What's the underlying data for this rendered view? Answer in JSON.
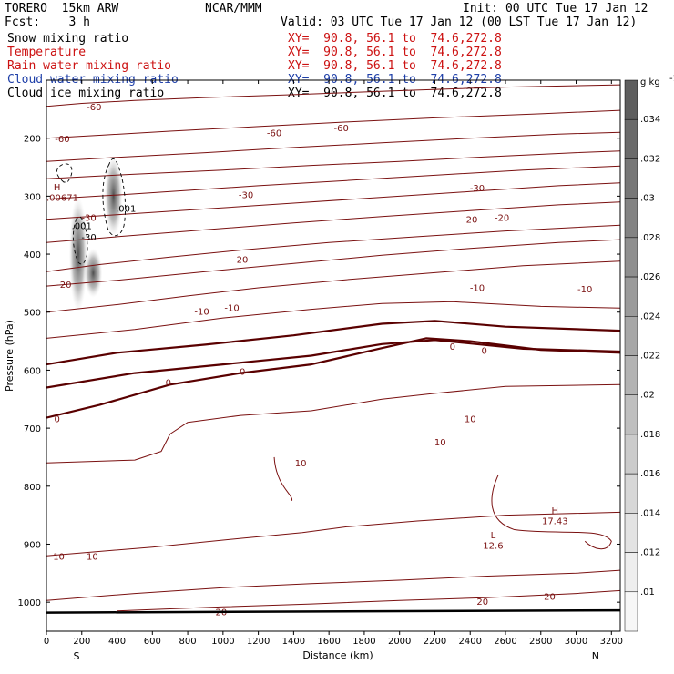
{
  "header": {
    "model": "TORERO  15km ARW",
    "center": "NCAR/MMM",
    "init": "Init: 00 UTC Tue 17 Jan 12",
    "fcst": "Fcst:    3 h",
    "valid": "Valid: 03 UTC Tue 17 Jan 12 (00 LST Tue 17 Jan 12)"
  },
  "fields": [
    {
      "label": "Snow mixing ratio",
      "xy": "XY=  90.8, 56.1 to  74.6,272.8",
      "color": "#000000"
    },
    {
      "label": "Temperature",
      "xy": "XY=  90.8, 56.1 to  74.6,272.8",
      "color": "#cc1111"
    },
    {
      "label": "Rain water mixing ratio",
      "xy": "XY=  90.8, 56.1 to  74.6,272.8",
      "color": "#cc1111"
    },
    {
      "label": "Cloud water mixing ratio",
      "xy": "XY=  90.8, 56.1 to  74.6,272.8",
      "color": "#1e3fa8"
    },
    {
      "label": "Cloud ice mixing ratio",
      "xy": "XY=  90.8, 56.1 to  74.6,272.8",
      "color": "#000000"
    }
  ],
  "chart_data": {
    "type": "contour",
    "xlabel": "Distance (km)",
    "ylabel": "Pressure (hPa)",
    "xlim": [
      0,
      3250
    ],
    "ylim": [
      1050,
      100
    ],
    "xticks": [
      0,
      200,
      400,
      600,
      800,
      1000,
      1200,
      1400,
      1600,
      1800,
      2000,
      2200,
      2400,
      2600,
      2800,
      3000,
      3200
    ],
    "yticks": [
      200,
      300,
      400,
      500,
      600,
      700,
      800,
      900,
      1000
    ],
    "end_labels": {
      "left": "S",
      "right": "N"
    },
    "colorbar": {
      "unit": "g kg",
      "unit_exp": "-1",
      "ticks": [
        ".034",
        ".032",
        ".03",
        ".028",
        ".026",
        ".024",
        ".022",
        ".02",
        ".018",
        ".016",
        ".014",
        ".012",
        ".01"
      ],
      "colors": [
        "#5e5e5e",
        "#6a6a6a",
        "#777777",
        "#838383",
        "#8f8f8f",
        "#9b9b9b",
        "#a7a7a7",
        "#b3b3b3",
        "#bfbfbf",
        "#cbcbcb",
        "#d7d7d7",
        "#e3e3e3",
        "#eeeeee",
        "#f7f7f7"
      ]
    },
    "isotherms": [
      {
        "value": -60,
        "points": [
          [
            0,
            145
          ],
          [
            200,
            140
          ],
          [
            500,
            135
          ],
          [
            900,
            130
          ],
          [
            1400,
            125
          ],
          [
            2000,
            118
          ],
          [
            2600,
            112
          ],
          [
            3250,
            108
          ]
        ]
      },
      {
        "value": -60,
        "points": [
          [
            0,
            200
          ],
          [
            300,
            195
          ],
          [
            700,
            188
          ],
          [
            1200,
            180
          ],
          [
            1700,
            172
          ],
          [
            2200,
            165
          ],
          [
            2800,
            158
          ],
          [
            3250,
            152
          ]
        ]
      },
      {
        "value": -50,
        "points": [
          [
            0,
            240
          ],
          [
            400,
            233
          ],
          [
            900,
            225
          ],
          [
            1400,
            216
          ],
          [
            1900,
            208
          ],
          [
            2400,
            200
          ],
          [
            2900,
            193
          ],
          [
            3250,
            190
          ]
        ]
      },
      {
        "value": -40,
        "points": [
          [
            0,
            270
          ],
          [
            500,
            262
          ],
          [
            1000,
            255
          ],
          [
            1500,
            247
          ],
          [
            2000,
            240
          ],
          [
            2500,
            232
          ],
          [
            3000,
            225
          ],
          [
            3250,
            222
          ]
        ]
      },
      {
        "value": -30,
        "points": [
          [
            0,
            305
          ],
          [
            400,
            298
          ],
          [
            800,
            290
          ],
          [
            1200,
            282
          ],
          [
            1700,
            273
          ],
          [
            2200,
            264
          ],
          [
            2700,
            255
          ],
          [
            3250,
            248
          ]
        ]
      },
      {
        "value": -30,
        "points": [
          [
            0,
            340
          ],
          [
            400,
            332
          ],
          [
            900,
            322
          ],
          [
            1400,
            312
          ],
          [
            1900,
            302
          ],
          [
            2400,
            292
          ],
          [
            2900,
            282
          ],
          [
            3250,
            277
          ]
        ]
      },
      {
        "value": -20,
        "points": [
          [
            0,
            380
          ],
          [
            400,
            370
          ],
          [
            900,
            358
          ],
          [
            1400,
            346
          ],
          [
            1900,
            335
          ],
          [
            2400,
            325
          ],
          [
            2900,
            315
          ],
          [
            3250,
            310
          ]
        ]
      },
      {
        "value": -20,
        "points": [
          [
            0,
            430
          ],
          [
            300,
            418
          ],
          [
            700,
            405
          ],
          [
            1100,
            393
          ],
          [
            1600,
            380
          ],
          [
            2100,
            370
          ],
          [
            2600,
            360
          ],
          [
            3250,
            350
          ]
        ]
      },
      {
        "value": -10,
        "points": [
          [
            0,
            455
          ],
          [
            400,
            445
          ],
          [
            900,
            430
          ],
          [
            1400,
            416
          ],
          [
            1900,
            402
          ],
          [
            2400,
            390
          ],
          [
            2900,
            380
          ],
          [
            3250,
            375
          ]
        ]
      },
      {
        "value": -10,
        "points": [
          [
            0,
            500
          ],
          [
            400,
            487
          ],
          [
            800,
            472
          ],
          [
            1200,
            458
          ],
          [
            1700,
            444
          ],
          [
            2200,
            432
          ],
          [
            2700,
            420
          ],
          [
            3250,
            412
          ]
        ]
      },
      {
        "value": -10,
        "points": [
          [
            0,
            545
          ],
          [
            500,
            530
          ],
          [
            1000,
            510
          ],
          [
            1500,
            495
          ],
          [
            1900,
            485
          ],
          [
            2300,
            482
          ],
          [
            2800,
            490
          ],
          [
            3250,
            493
          ]
        ]
      },
      {
        "value": 0,
        "points": [
          [
            0,
            590
          ],
          [
            400,
            570
          ],
          [
            900,
            556
          ],
          [
            1400,
            540
          ],
          [
            1900,
            520
          ],
          [
            2200,
            515
          ],
          [
            2600,
            525
          ],
          [
            3250,
            532
          ]
        ]
      },
      {
        "value": 0,
        "points": [
          [
            0,
            630
          ],
          [
            500,
            605
          ],
          [
            1000,
            590
          ],
          [
            1500,
            575
          ],
          [
            1900,
            555
          ],
          [
            2200,
            548
          ],
          [
            2700,
            563
          ],
          [
            3250,
            568
          ]
        ]
      },
      {
        "value": 0,
        "points": [
          [
            0,
            682
          ],
          [
            300,
            660
          ],
          [
            700,
            625
          ],
          [
            1100,
            605
          ],
          [
            1500,
            590
          ],
          [
            1900,
            562
          ],
          [
            2150,
            545
          ],
          [
            2400,
            550
          ],
          [
            2800,
            565
          ],
          [
            3250,
            570
          ]
        ]
      },
      {
        "value": 10,
        "points": [
          [
            0,
            760
          ],
          [
            500,
            755
          ],
          [
            650,
            740
          ],
          [
            700,
            710
          ],
          [
            800,
            690
          ],
          [
            1100,
            678
          ],
          [
            1500,
            670
          ],
          [
            1900,
            650
          ],
          [
            2200,
            640
          ],
          [
            2600,
            628
          ],
          [
            3250,
            625
          ]
        ]
      },
      {
        "value": 10,
        "points": [
          [
            0,
            920
          ],
          [
            600,
            905
          ],
          [
            1100,
            890
          ],
          [
            1450,
            880
          ],
          [
            1700,
            870
          ],
          [
            2100,
            860
          ],
          [
            2600,
            850
          ],
          [
            3250,
            845
          ]
        ]
      },
      {
        "value": 20,
        "points": [
          [
            0,
            997
          ],
          [
            500,
            985
          ],
          [
            1000,
            975
          ],
          [
            1500,
            968
          ],
          [
            2000,
            962
          ],
          [
            2500,
            955
          ],
          [
            3000,
            950
          ],
          [
            3250,
            945
          ]
        ]
      },
      {
        "value": 20,
        "points": [
          [
            400,
            1015
          ],
          [
            1000,
            1008
          ],
          [
            1500,
            1003
          ],
          [
            2000,
            997
          ],
          [
            2500,
            992
          ],
          [
            3000,
            985
          ],
          [
            3250,
            980
          ]
        ]
      }
    ],
    "isotherm_labels": [
      {
        "text": "-60",
        "x": 270,
        "y": 147
      },
      {
        "text": "-60",
        "x": 90,
        "y": 202
      },
      {
        "text": "-60",
        "x": 1290,
        "y": 192
      },
      {
        "text": "-60",
        "x": 1670,
        "y": 183
      },
      {
        "text": "-30",
        "x": 1130,
        "y": 299
      },
      {
        "text": "-30",
        "x": 2440,
        "y": 287
      },
      {
        "text": "-30",
        "x": 240,
        "y": 338
      },
      {
        "text": "-20",
        "x": 1100,
        "y": 410
      },
      {
        "text": "-20",
        "x": 2580,
        "y": 338
      },
      {
        "text": "-20",
        "x": 2400,
        "y": 341
      },
      {
        "text": "-20",
        "x": 100,
        "y": 453
      },
      {
        "text": "-10",
        "x": 880,
        "y": 500
      },
      {
        "text": "-10",
        "x": 1050,
        "y": 493
      },
      {
        "text": "-10",
        "x": 2440,
        "y": 459
      },
      {
        "text": "-10",
        "x": 3050,
        "y": 461
      },
      {
        "text": "0",
        "x": 690,
        "y": 622
      },
      {
        "text": "0",
        "x": 1110,
        "y": 603
      },
      {
        "text": "0",
        "x": 2300,
        "y": 560
      },
      {
        "text": "0",
        "x": 2480,
        "y": 567
      },
      {
        "text": "0",
        "x": 60,
        "y": 685
      },
      {
        "text": "10",
        "x": 2400,
        "y": 685
      },
      {
        "text": "10",
        "x": 2230,
        "y": 725
      },
      {
        "text": "10",
        "x": 1440,
        "y": 761
      },
      {
        "text": "10",
        "x": 70,
        "y": 922
      },
      {
        "text": "10",
        "x": 260,
        "y": 922
      },
      {
        "text": "20",
        "x": 2470,
        "y": 1000
      },
      {
        "text": "20",
        "x": 2850,
        "y": 991
      },
      {
        "text": "20",
        "x": 990,
        "y": 1018
      }
    ],
    "extrema": [
      {
        "text": "H",
        "x": 2880,
        "y": 843
      },
      {
        "text": "17.43",
        "x": 2880,
        "y": 861
      },
      {
        "text": "L",
        "x": 2530,
        "y": 885
      },
      {
        "text": "12.6",
        "x": 2530,
        "y": 903
      },
      {
        "text": "H",
        "x": 60,
        "y": 285
      },
      {
        "text": ".00671",
        "x": 90,
        "y": 303
      }
    ],
    "mixing_ratio_labels": [
      {
        "text": ".001",
        "x": 200,
        "y": 352
      },
      {
        "text": ".001",
        "x": 450,
        "y": 322
      },
      {
        "text": "-30",
        "x": 240,
        "y": 372
      }
    ],
    "shaded_columns": [
      {
        "x_center": 180,
        "p_top": 300,
        "p_bottom": 500,
        "peak": 0.034
      },
      {
        "x_center": 265,
        "p_top": 390,
        "p_bottom": 475,
        "peak": 0.03
      },
      {
        "x_center": 380,
        "p_top": 230,
        "p_bottom": 370,
        "peak": 0.034
      }
    ]
  }
}
